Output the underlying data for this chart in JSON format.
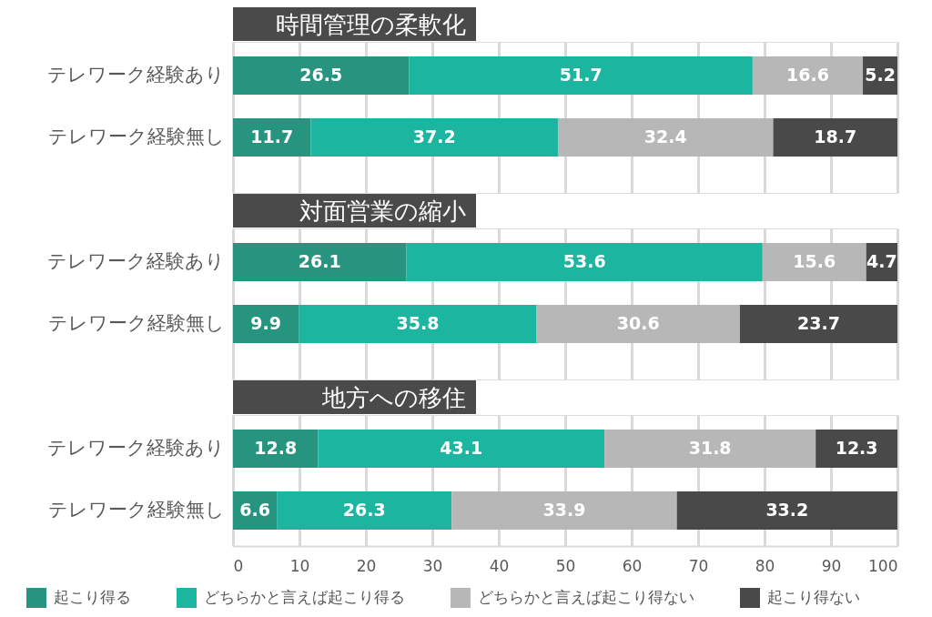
{
  "chart_data": [
    {
      "type": "bar",
      "orientation": "horizontal",
      "stacked": true,
      "title": "時間管理の柔軟化",
      "categories": [
        "テレワーク経験あり",
        "テレワーク経験無し"
      ],
      "series": [
        {
          "color": "#279480",
          "values": [
            26.5,
            11.7
          ]
        },
        {
          "color": "#1cb5a0",
          "values": [
            51.7,
            37.2
          ]
        },
        {
          "color": "#b7b7b7",
          "values": [
            16.6,
            32.4
          ]
        },
        {
          "color": "#494949",
          "values": [
            5.2,
            18.7
          ]
        }
      ],
      "xlim": [
        0,
        100
      ],
      "xticks": [
        0,
        10,
        20,
        30,
        40,
        50,
        60,
        70,
        80,
        90,
        100
      ],
      "grid": "x",
      "data_labels": true,
      "tick_labels": "y"
    },
    {
      "type": "bar",
      "orientation": "horizontal",
      "stacked": true,
      "title": "対面営業の縮小",
      "categories": [
        "テレワーク経験あり",
        "テレワーク経験無し"
      ],
      "series": [
        {
          "color": "#279480",
          "values": [
            26.1,
            9.9
          ]
        },
        {
          "color": "#1cb5a0",
          "values": [
            53.6,
            35.8
          ]
        },
        {
          "color": "#b7b7b7",
          "values": [
            15.6,
            30.6
          ]
        },
        {
          "color": "#494949",
          "values": [
            4.7,
            23.7
          ]
        }
      ],
      "xlim": [
        0,
        100
      ],
      "xticks": [
        0,
        10,
        20,
        30,
        40,
        50,
        60,
        70,
        80,
        90,
        100
      ],
      "grid": "x",
      "data_labels": true,
      "tick_labels": "y"
    },
    {
      "type": "bar",
      "orientation": "horizontal",
      "stacked": true,
      "title": "地方への移住",
      "categories": [
        "テレワーク経験あり",
        "テレワーク経験無し"
      ],
      "series": [
        {
          "name": "起こり得る",
          "color": "#279480",
          "values": [
            12.8,
            6.6
          ]
        },
        {
          "name": "どちらかと言えば起こり得る",
          "color": "#1cb5a0",
          "values": [
            43.1,
            26.3
          ]
        },
        {
          "name": "どちらかと言えば起こり得ない",
          "color": "#b7b7b7",
          "values": [
            31.8,
            33.9
          ]
        },
        {
          "name": "起こり得ない",
          "color": "#494949",
          "values": [
            12.3,
            33.2
          ]
        }
      ],
      "xlim": [
        0,
        100
      ],
      "xticks": [
        0,
        10,
        20,
        30,
        40,
        50,
        60,
        70,
        80,
        90,
        100
      ],
      "grid": "x",
      "data_labels": true,
      "legend": "bottom"
    }
  ]
}
